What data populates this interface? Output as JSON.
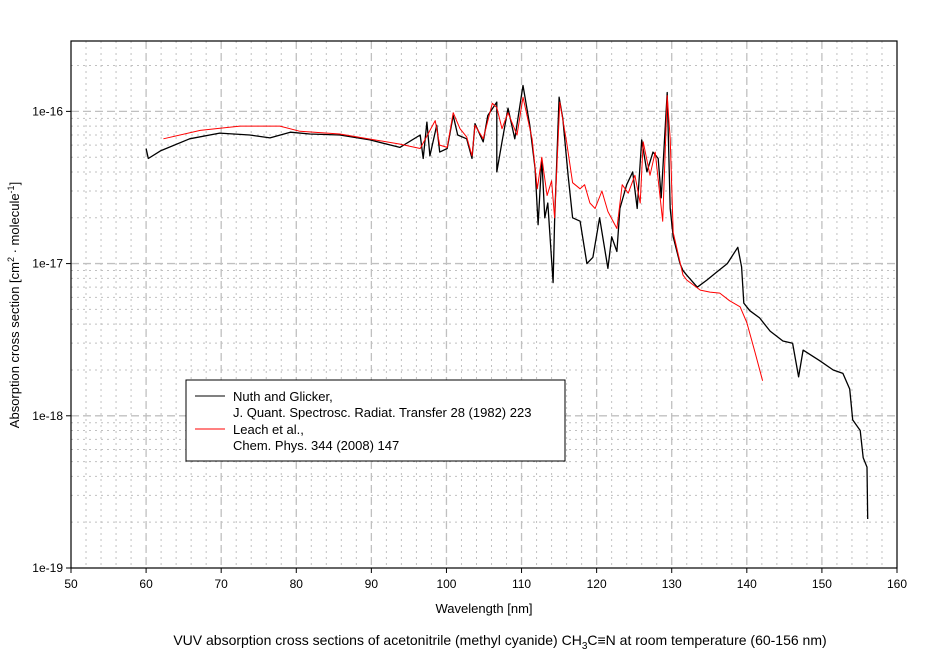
{
  "chart_data": {
    "type": "line",
    "title": "VUV absorption cross sections of acetonitrile (methyl cyanide) CH3C≡N at room temperature (60-156 nm)",
    "title_parts": {
      "before": "VUV absorption cross sections of acetonitrile (methyl cyanide) CH",
      "sub": "3",
      "after": "C≡N at room temperature (60-156 nm)"
    },
    "xlabel": "Wavelength [nm]",
    "ylabel_parts": {
      "a": "Absorption cross section [cm",
      "sup1": "2",
      "b": " · molecule",
      "sup2": "-1",
      "c": "]"
    },
    "xlim": [
      50,
      160
    ],
    "ylim": [
      1e-19,
      2.9e-16
    ],
    "yscale": "log",
    "xticks": [
      50,
      60,
      70,
      80,
      90,
      100,
      110,
      120,
      130,
      140,
      150,
      160
    ],
    "xtick_labels": [
      "50",
      "60",
      "70",
      "80",
      "90",
      "100",
      "110",
      "120",
      "130",
      "140",
      "150",
      "160"
    ],
    "yticks": [
      1e-19,
      1e-18,
      1e-17,
      1e-16
    ],
    "ytick_labels": [
      "1e-19",
      "1e-18",
      "1e-17",
      "1e-16"
    ],
    "grid": true,
    "legend_placement": "lower-left",
    "series": [
      {
        "name": "Nuth and Glicker,",
        "name_line2": "J. Quant. Spectrosc. Radiat. Transfer 28 (1982) 223",
        "color": "#000000",
        "x": [
          60.0,
          60.3,
          61.9,
          65.8,
          69.8,
          73.8,
          76.5,
          79.2,
          81.8,
          85.8,
          89.8,
          93.8,
          96.5,
          96.9,
          97.4,
          97.8,
          98.7,
          99.1,
          100.1,
          100.9,
          101.5,
          102.7,
          103.4,
          103.8,
          104.9,
          105.5,
          106.7,
          106.7,
          107.4,
          108.2,
          109.1,
          110.2,
          111.1,
          111.8,
          112.2,
          112.7,
          113.1,
          113.5,
          114.2,
          114.4,
          115.0,
          115.5,
          116.2,
          116.8,
          117.8,
          118.7,
          119.5,
          120.4,
          121.5,
          122.0,
          122.7,
          123.1,
          124.0,
          124.8,
          125.4,
          126.0,
          126.7,
          127.5,
          128.2,
          128.6,
          129.4,
          129.8,
          130.2,
          131.1,
          131.5,
          132.0,
          133.4,
          134.7,
          136.0,
          137.4,
          138.8,
          139.3,
          139.6,
          140.4,
          141.7,
          143.1,
          144.8,
          146.1,
          146.9,
          147.5,
          149.7,
          151.5,
          152.8,
          153.7,
          154.1,
          155.1,
          155.5,
          156.0,
          156.1
        ],
        "y": [
          5.7e-17,
          4.9e-17,
          5.5e-17,
          6.6e-17,
          7.2e-17,
          7e-17,
          6.7e-17,
          7.3e-17,
          7.1e-17,
          7e-17,
          6.5e-17,
          5.8e-17,
          7e-17,
          4.9e-17,
          8.5e-17,
          5.1e-17,
          8.1e-17,
          5.4e-17,
          5.7e-17,
          9.4e-17,
          7e-17,
          6.6e-17,
          4.9e-17,
          8.3e-17,
          6.3e-17,
          9.4e-17,
          1.15e-16,
          4e-17,
          6.3e-17,
          1.05e-16,
          6.6e-17,
          1.48e-16,
          8.1e-17,
          4.2e-17,
          1.8e-17,
          4.9e-17,
          2e-17,
          2.5e-17,
          7.5e-18,
          1.9e-17,
          1.24e-16,
          9e-17,
          3.8e-17,
          2e-17,
          1.9e-17,
          1e-17,
          1.1e-17,
          2e-17,
          9.3e-18,
          1.5e-17,
          1.2e-17,
          2.3e-17,
          3.3e-17,
          4e-17,
          2.3e-17,
          6.5e-17,
          4e-17,
          5.4e-17,
          4.9e-17,
          2.7e-17,
          1.33e-16,
          2.3e-17,
          1.5e-17,
          1e-17,
          9e-18,
          8.4e-18,
          7e-18,
          7.8e-18,
          8.8e-18,
          1e-17,
          1.28e-17,
          9.5e-18,
          5.5e-18,
          4.9e-18,
          4.4e-18,
          3.6e-18,
          3.1e-18,
          3e-18,
          1.8e-18,
          2.7e-18,
          2.3e-18,
          2e-18,
          1.9e-18,
          1.5e-18,
          9.4e-19,
          8e-19,
          5.3e-19,
          4.6e-19,
          2.1e-19
        ]
      },
      {
        "name": "Leach et al.,",
        "name_line2": "Chem. Phys. 344 (2008) 147",
        "color": "#ff0000",
        "x": [
          62.3,
          67.2,
          72.5,
          77.8,
          80.5,
          85.8,
          93.8,
          96.5,
          98.5,
          99.1,
          100.1,
          100.9,
          101.8,
          102.7,
          103.4,
          103.8,
          104.9,
          106.1,
          106.7,
          107.4,
          108.2,
          109.4,
          110.2,
          111.4,
          112.1,
          112.7,
          113.4,
          114.0,
          114.4,
          115.1,
          116.0,
          116.8,
          117.8,
          118.4,
          119.1,
          119.8,
          120.7,
          121.5,
          122.7,
          123.4,
          124.2,
          125.1,
          125.8,
          126.2,
          127.1,
          127.8,
          128.8,
          129.4,
          129.8,
          130.2,
          131.5,
          132.0,
          133.8,
          135.1,
          136.4,
          137.7,
          139.1,
          140.0,
          141.1,
          142.1
        ],
        "y": [
          6.6e-17,
          7.5e-17,
          8e-17,
          8e-17,
          7.4e-17,
          7.1e-17,
          6.1e-17,
          5.7e-17,
          8.7e-17,
          6e-17,
          5.8e-17,
          9.8e-17,
          7.7e-17,
          6.8e-17,
          5.1e-17,
          8.1e-17,
          6.6e-17,
          1.13e-16,
          1.06e-16,
          7.7e-17,
          9.8e-17,
          7e-17,
          1.24e-16,
          6.6e-17,
          3.1e-17,
          5e-17,
          2.8e-17,
          3.5e-17,
          2e-17,
          1.15e-16,
          6.3e-17,
          3.4e-17,
          3.1e-17,
          3.3e-17,
          2.5e-17,
          2.3e-17,
          3e-17,
          2.2e-17,
          1.7e-17,
          3.3e-17,
          2.9e-17,
          3.8e-17,
          2.5e-17,
          6.3e-17,
          3.8e-17,
          5.4e-17,
          1.9e-17,
          1.27e-16,
          6.6e-17,
          1.6e-17,
          8.4e-18,
          7.8e-18,
          6.7e-18,
          6.5e-18,
          6.4e-18,
          5.7e-18,
          5.2e-18,
          4.1e-18,
          2.6e-18,
          1.7e-18
        ]
      }
    ]
  }
}
